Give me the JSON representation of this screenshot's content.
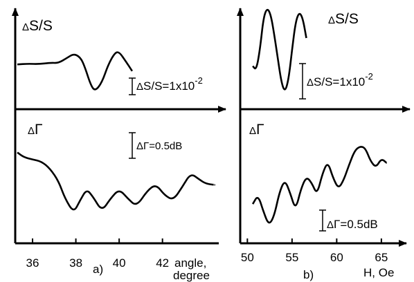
{
  "chart_data": [
    {
      "type": "line",
      "panel": "a)",
      "x_ticks": [
        "36",
        "38",
        "40",
        "42"
      ],
      "x_range": [
        35.2,
        44.6
      ],
      "xlabel_line1": "angle,",
      "xlabel_line2": "degree",
      "series": [
        {
          "name_delta": "Δ",
          "name": "S/S",
          "scale_bar": {
            "delta": "Δ",
            "text": "S/S=1x10",
            "exp": "-2"
          },
          "points": [
            [
              35.3,
              0.1
            ],
            [
              35.8,
              0.12
            ],
            [
              36.3,
              0.11
            ],
            [
              36.8,
              0.15
            ],
            [
              37.2,
              0.14
            ],
            [
              37.6,
              0.3
            ],
            [
              37.9,
              0.42
            ],
            [
              38.2,
              0.32
            ],
            [
              38.4,
              0.05
            ],
            [
              38.7,
              -0.55
            ],
            [
              38.9,
              -0.7
            ],
            [
              39.2,
              -0.45
            ],
            [
              39.5,
              0.1
            ],
            [
              39.8,
              0.45
            ],
            [
              40.0,
              0.48
            ],
            [
              40.3,
              0.2
            ],
            [
              40.6,
              -0.1
            ]
          ]
        },
        {
          "name_delta": "Δ",
          "name": "Γ",
          "scale_bar": {
            "delta": "Δ",
            "text": "Γ=0.5dB"
          },
          "points": [
            [
              35.3,
              0.9
            ],
            [
              35.6,
              0.75
            ],
            [
              36.0,
              0.68
            ],
            [
              36.4,
              0.62
            ],
            [
              36.8,
              0.4
            ],
            [
              37.2,
              0.0
            ],
            [
              37.5,
              -0.55
            ],
            [
              37.9,
              -1.0
            ],
            [
              38.2,
              -0.6
            ],
            [
              38.5,
              -0.25
            ],
            [
              38.8,
              -0.5
            ],
            [
              39.2,
              -0.95
            ],
            [
              39.6,
              -0.55
            ],
            [
              40.0,
              -0.25
            ],
            [
              40.4,
              -0.55
            ],
            [
              40.8,
              -0.8
            ],
            [
              41.3,
              -0.3
            ],
            [
              41.7,
              -0.1
            ],
            [
              42.1,
              -0.45
            ],
            [
              42.5,
              -0.6
            ],
            [
              42.9,
              -0.2
            ],
            [
              43.3,
              0.25
            ],
            [
              43.7,
              0.05
            ],
            [
              44.0,
              -0.08
            ],
            [
              44.4,
              -0.12
            ]
          ]
        }
      ]
    },
    {
      "type": "line",
      "panel": "b)",
      "x_ticks": [
        "50",
        "55",
        "60",
        "65"
      ],
      "x_range": [
        49.2,
        67.8
      ],
      "xlabel": "H, Oe",
      "series": [
        {
          "name_delta": "Δ",
          "name": "S/S",
          "scale_bar": {
            "delta": "Δ",
            "text": "S/S=1x10",
            "exp": "-2"
          },
          "points": [
            [
              50.6,
              -0.2
            ],
            [
              51.0,
              -0.3
            ],
            [
              51.4,
              0.2
            ],
            [
              51.8,
              1.0
            ],
            [
              52.2,
              1.25
            ],
            [
              52.6,
              1.1
            ],
            [
              53.0,
              0.6
            ],
            [
              53.4,
              0.0
            ],
            [
              53.8,
              -0.6
            ],
            [
              54.2,
              -0.85
            ],
            [
              54.6,
              -0.55
            ],
            [
              55.0,
              0.2
            ],
            [
              55.4,
              0.9
            ],
            [
              55.8,
              1.15
            ],
            [
              56.2,
              1.0
            ],
            [
              56.6,
              0.5
            ]
          ]
        },
        {
          "name_delta": "Δ",
          "name": "Γ",
          "scale_bar": {
            "delta": "Δ",
            "text": "Γ=0.5dB"
          },
          "points": [
            [
              50.6,
              -0.3
            ],
            [
              51.2,
              0.0
            ],
            [
              51.8,
              -0.55
            ],
            [
              52.4,
              -1.0
            ],
            [
              53.0,
              -0.7
            ],
            [
              53.6,
              0.1
            ],
            [
              54.2,
              0.5
            ],
            [
              54.8,
              0.05
            ],
            [
              55.4,
              -0.5
            ],
            [
              56.0,
              0.2
            ],
            [
              56.6,
              0.6
            ],
            [
              57.2,
              0.4
            ],
            [
              57.8,
              0.0
            ],
            [
              58.4,
              0.7
            ],
            [
              59.0,
              1.1
            ],
            [
              59.6,
              0.55
            ],
            [
              60.2,
              0.2
            ],
            [
              60.8,
              0.5
            ],
            [
              61.4,
              1.0
            ],
            [
              62.0,
              1.45
            ],
            [
              62.6,
              1.6
            ],
            [
              63.2,
              1.55
            ],
            [
              63.8,
              1.1
            ],
            [
              64.4,
              0.9
            ],
            [
              65.0,
              1.2
            ],
            [
              65.6,
              1.05
            ]
          ]
        }
      ]
    }
  ]
}
